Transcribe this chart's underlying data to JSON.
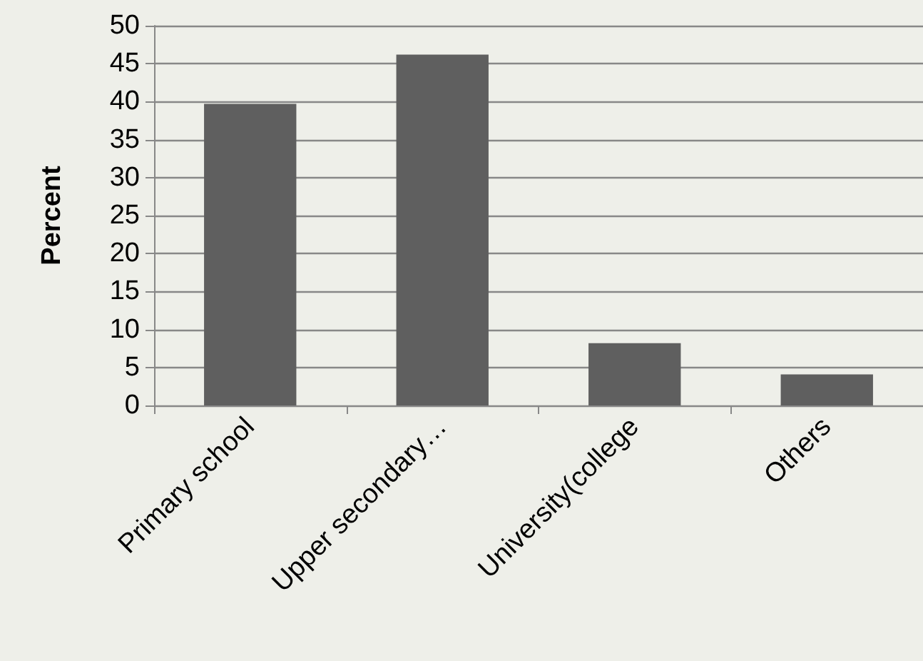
{
  "chart_data": {
    "type": "bar",
    "ylabel": "Percent",
    "categories": [
      "Primary school",
      "Upper secondary…",
      "University(college",
      "Others"
    ],
    "values": [
      39.7,
      46.2,
      8.2,
      4.1
    ],
    "color": "#5f5f5f",
    "ylim": [
      0,
      50
    ],
    "yticks": [
      0,
      5,
      10,
      15,
      20,
      25,
      30,
      35,
      40,
      45,
      50
    ],
    "grid": "y"
  }
}
